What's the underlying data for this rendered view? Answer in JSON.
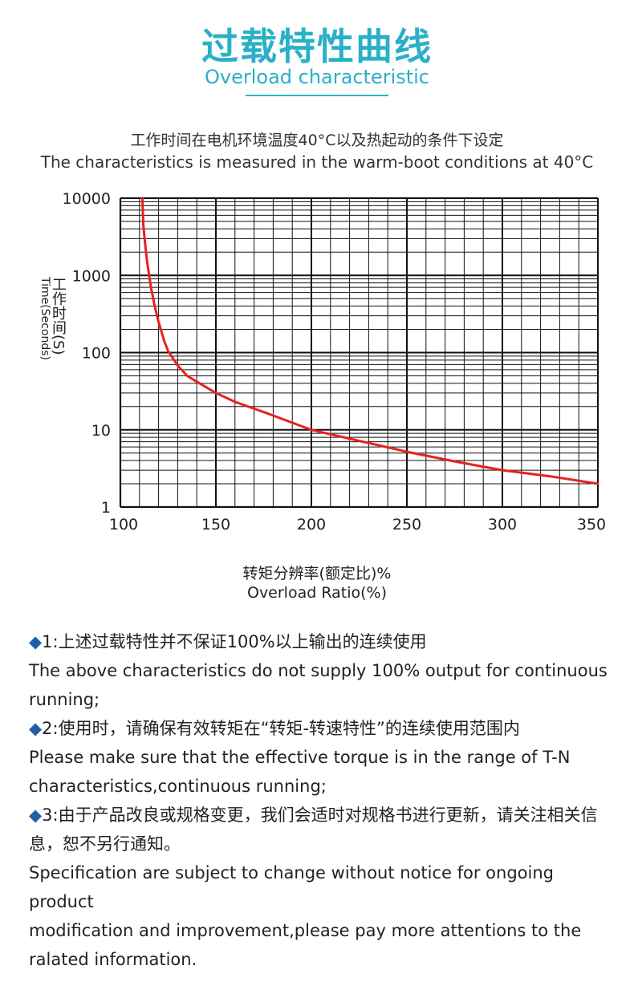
{
  "header": {
    "title_cn": "过载特性曲线",
    "title_en": "Overload characteristic",
    "subtitle_cn": "工作时间在电机环境温度40°C以及热起动的条件下设定",
    "subtitle_en": "The characteristics is measured in the warm-boot conditions at 40°C"
  },
  "chart_data": {
    "type": "line",
    "xlabel_cn": "转矩分辨率(额定比)%",
    "xlabel_en": "Overload Ratio(%)",
    "ylabel_cn": "工作时间(S)",
    "ylabel_en": "Time(Seconds)",
    "x_ticks": [
      "100",
      "150",
      "200",
      "250",
      "300",
      "350"
    ],
    "y_ticks": [
      "10000",
      "1000",
      "100",
      "10",
      "1"
    ],
    "xlim": [
      100,
      350
    ],
    "y_scale": "log",
    "ylim": [
      1,
      10000
    ],
    "grid": true,
    "line_color": "#e8211e",
    "series": [
      {
        "x": [
          111.5,
          112,
          113,
          114,
          116,
          118,
          120,
          123,
          125,
          130,
          135,
          140,
          150,
          160,
          175,
          200,
          225,
          250,
          275,
          300,
          325,
          350
        ],
        "y": [
          10000,
          4500,
          2500,
          1500,
          700,
          400,
          250,
          140,
          105,
          68,
          50,
          42,
          30,
          23,
          17,
          10,
          7.2,
          5.2,
          3.9,
          3.0,
          2.5,
          2.0
        ]
      }
    ]
  },
  "notes": [
    {
      "bullet": "◆",
      "cn": "1:上述过载特性并不保证100%以上输出的连续使用",
      "en": "The above characteristics do not supply 100% output for continuous running;"
    },
    {
      "bullet": "◆",
      "cn": "2:使用时，请确保有效转矩在“转矩-转速特性”的连续使用范围内",
      "en": "Please make sure that the effective torque is in the range of T-N characteristics,continuous running;"
    },
    {
      "bullet": "◆",
      "cn": "3:由于产品改良或规格变更，我们会适时对规格书进行更新，请关注相关信息，恕不另行通知。",
      "en": "Specification are subject to change without notice for ongoing product",
      "en2": "modification and improvement,please pay more attentions to the ralated information."
    }
  ]
}
